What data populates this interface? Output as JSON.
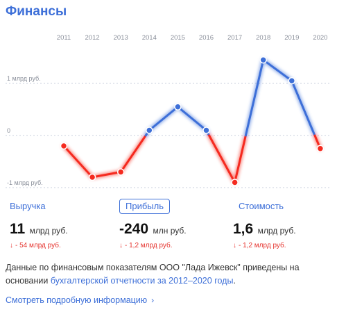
{
  "page": {
    "title": "Финансы"
  },
  "chart_data": {
    "type": "line",
    "x": [
      "2011",
      "2012",
      "2013",
      "2014",
      "2015",
      "2016",
      "2017",
      "2018",
      "2019",
      "2020"
    ],
    "series": [
      {
        "values": [
          -0.2,
          -0.8,
          -0.7,
          0.1,
          0.55,
          0.1,
          -0.9,
          1.45,
          1.05,
          -0.25
        ]
      }
    ],
    "y_tick_labels": [
      "1 млрд руб.",
      "0",
      "-1 млрд руб."
    ],
    "y_tick_values": [
      1,
      0,
      -1
    ],
    "ylim": [
      -1,
      1.5
    ],
    "colors": {
      "positive": "#3d6fd8",
      "negative": "#f52a1f",
      "grid": "#c9cfdc",
      "tick": "#8a8f9a"
    },
    "grid": true
  },
  "metrics": [
    {
      "label": "Выручка",
      "value": "11",
      "unit": "млрд руб.",
      "delta_arrow": "↓",
      "delta": "- 54 млрд руб.",
      "active": false
    },
    {
      "label": "Прибыль",
      "value": "-240",
      "unit": "млн руб.",
      "delta_arrow": "↓",
      "delta": "- 1,2 млрд руб.",
      "active": true
    },
    {
      "label": "Стоимость",
      "value": "1,6",
      "unit": "млрд руб.",
      "delta_arrow": "↓",
      "delta": "- 1,2 млрд руб.",
      "active": false
    }
  ],
  "note": {
    "text_before": "Данные по финансовым показателям ООО \"Лада Ижевск\" приведены на основании ",
    "link_text": "бухгалтерской отчетности за 2012–2020 годы",
    "text_after": "."
  },
  "more_link": {
    "label": "Смотреть подробную информацию",
    "chevron": "›"
  }
}
